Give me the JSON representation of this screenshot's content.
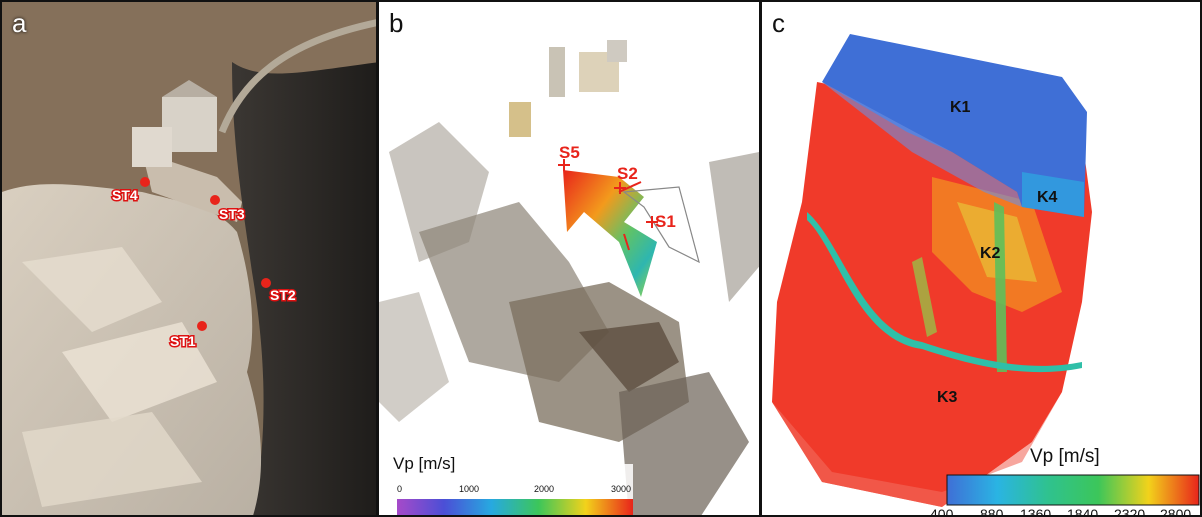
{
  "panels": {
    "a": {
      "label": "a",
      "stations": [
        "ST4",
        "ST3",
        "ST2",
        "ST1"
      ]
    },
    "b": {
      "label": "b",
      "sensors": [
        "S5",
        "S2",
        "S1"
      ],
      "colorbar": {
        "title": "Vp [m/s]",
        "ticks": [
          "0",
          "1000",
          "2000",
          "3000"
        ]
      }
    },
    "c": {
      "label": "c",
      "fractures": [
        "K1",
        "K4",
        "K2",
        "K3"
      ],
      "colorbar": {
        "title": "Vp [m/s]",
        "ticks": [
          "400",
          "880",
          "1360",
          "1840",
          "2320",
          "2800"
        ]
      }
    }
  },
  "colors": {
    "station_marker": "#e8241b",
    "high_velocity": "#f03a2a",
    "low_velocity": "#3f6fd6"
  }
}
